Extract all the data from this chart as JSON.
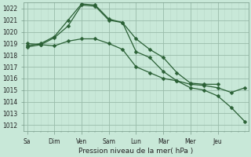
{
  "background_color": "#c8e8d8",
  "grid_major_color": "#99bbaa",
  "grid_minor_color": "#b8d8c8",
  "line_color": "#2a6035",
  "x_day_labels": [
    "Sa",
    "Dim",
    "Ven",
    "Sam",
    "Lun",
    "Mar",
    "Mer",
    "Jeu"
  ],
  "x_day_positions": [
    0,
    4,
    8,
    12,
    16,
    20,
    24,
    28
  ],
  "ylim": [
    1011.5,
    1022.5
  ],
  "yticks": [
    1012,
    1013,
    1014,
    1015,
    1016,
    1017,
    1018,
    1019,
    1020,
    1021,
    1022
  ],
  "ylabel": "Pression niveau de la mer( hPa )",
  "line1_x": [
    0,
    2,
    4,
    6,
    8,
    10,
    12,
    14,
    16,
    18,
    20,
    22,
    24,
    26,
    28
  ],
  "line1_y": [
    1018.8,
    1019.0,
    1019.6,
    1021.0,
    1022.4,
    1022.3,
    1021.1,
    1020.8,
    1019.4,
    1018.5,
    1017.8,
    1016.5,
    1015.6,
    1015.5,
    1015.5
  ],
  "line2_x": [
    0,
    2,
    4,
    6,
    8,
    10,
    12,
    14,
    16,
    18,
    20,
    22,
    24,
    26,
    28,
    30,
    32
  ],
  "line2_y": [
    1018.7,
    1018.9,
    1019.5,
    1020.5,
    1022.3,
    1022.2,
    1021.0,
    1020.8,
    1018.3,
    1017.8,
    1016.6,
    1015.8,
    1015.2,
    1015.0,
    1014.5,
    1013.5,
    1012.3
  ],
  "line3_x": [
    0,
    2,
    4,
    6,
    8,
    10,
    12,
    14,
    16,
    18,
    20,
    22,
    24,
    26,
    28,
    30,
    32
  ],
  "line3_y": [
    1019.0,
    1018.9,
    1018.8,
    1019.2,
    1019.4,
    1019.4,
    1019.0,
    1018.5,
    1017.0,
    1016.5,
    1016.0,
    1015.8,
    1015.5,
    1015.4,
    1015.2,
    1014.8,
    1015.2
  ],
  "xlim": [
    -0.5,
    32.5
  ],
  "markersize": 2.5,
  "linewidth": 0.9
}
